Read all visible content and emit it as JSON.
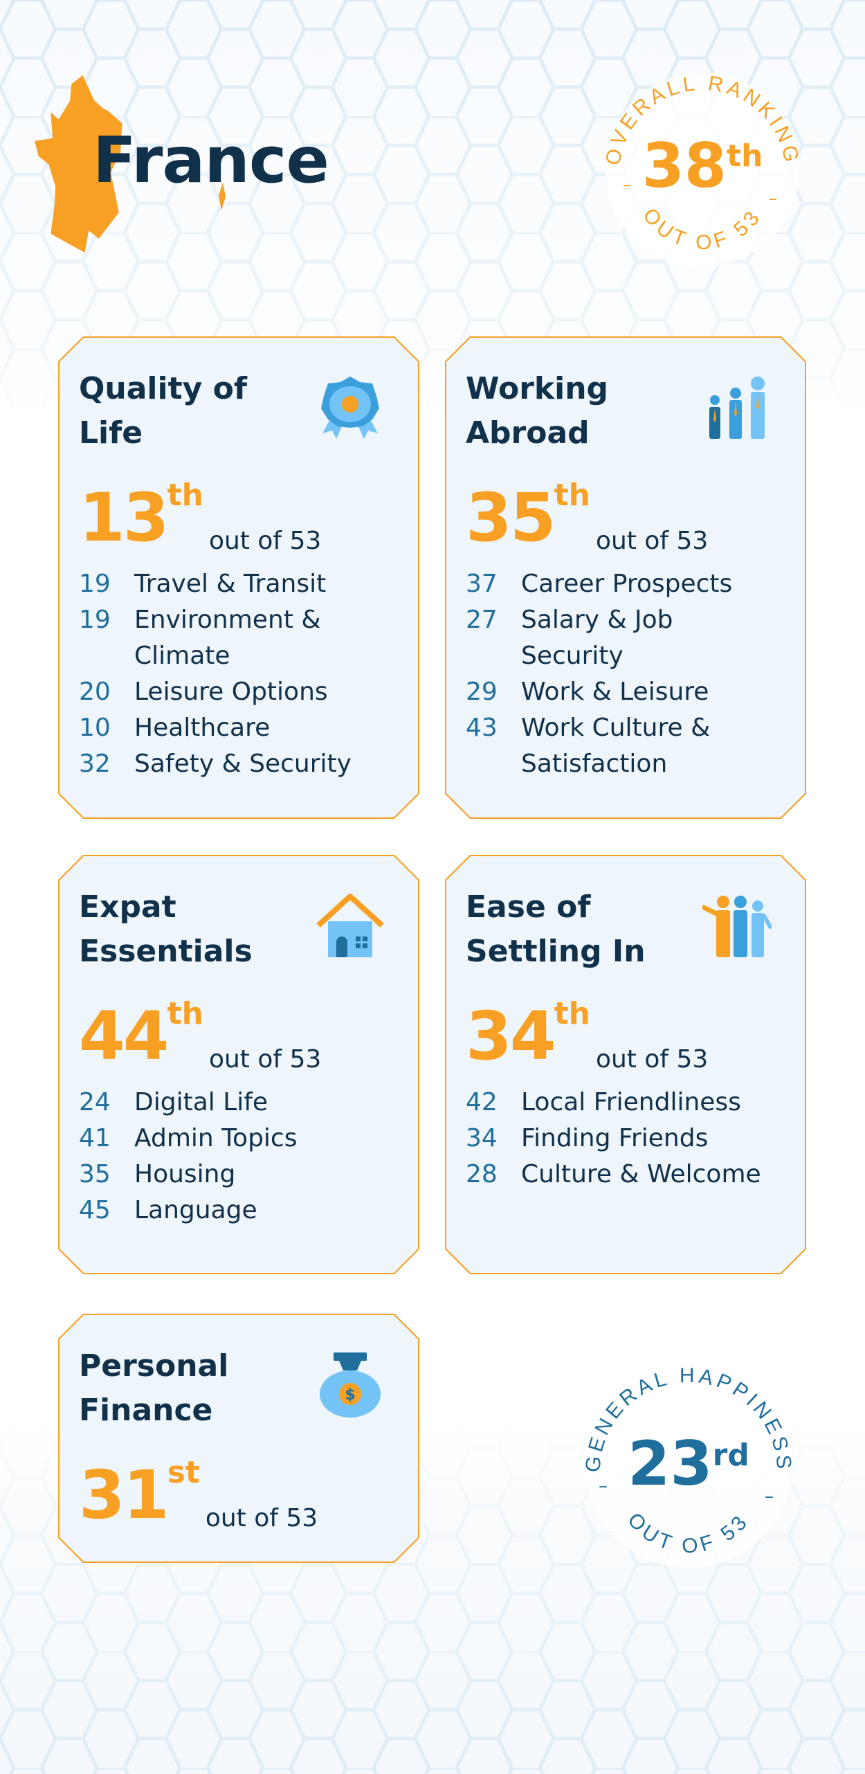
{
  "country": "France",
  "colors": {
    "orange": "#f7a024",
    "navy": "#11304a",
    "blue": "#1f6e9c",
    "card_bg": "#eef5fb"
  },
  "overall": {
    "label": "OVERALL RANKING",
    "rank": "38",
    "suffix": "th",
    "out_of": "OUT OF 53"
  },
  "happiness": {
    "label": "GENERAL HAPPINESS",
    "rank": "23",
    "suffix": "rd",
    "out_of": "OUT OF 53"
  },
  "cards": [
    {
      "title": "Quality of Life",
      "icon": "award-rosette-icon",
      "rank": "13",
      "suffix": "th",
      "out_of": "out of 53",
      "items": [
        {
          "num": "19",
          "label": "Travel & Transit"
        },
        {
          "num": "19",
          "label": "Environment & Climate"
        },
        {
          "num": "20",
          "label": "Leisure Options"
        },
        {
          "num": "10",
          "label": "Healthcare"
        },
        {
          "num": "32",
          "label": "Safety & Security"
        }
      ]
    },
    {
      "title": "Working Abroad",
      "icon": "business-people-icon",
      "rank": "35",
      "suffix": "th",
      "out_of": "out of 53",
      "items": [
        {
          "num": "37",
          "label": "Career Prospects"
        },
        {
          "num": "27",
          "label": "Salary & Job Security"
        },
        {
          "num": "29",
          "label": "Work & Leisure"
        },
        {
          "num": "43",
          "label": "Work Culture & Satisfaction"
        }
      ]
    },
    {
      "title": "Expat Essentials",
      "icon": "house-icon",
      "rank": "44",
      "suffix": "th",
      "out_of": "out of 53",
      "items": [
        {
          "num": "24",
          "label": "Digital Life"
        },
        {
          "num": "41",
          "label": "Admin Topics"
        },
        {
          "num": "35",
          "label": "Housing"
        },
        {
          "num": "45",
          "label": "Language"
        }
      ]
    },
    {
      "title": "Ease of Settling In",
      "icon": "welcoming-people-icon",
      "rank": "34",
      "suffix": "th",
      "out_of": "out of 53",
      "items": [
        {
          "num": "42",
          "label": "Local Friendliness"
        },
        {
          "num": "34",
          "label": "Finding Friends"
        },
        {
          "num": "28",
          "label": "Culture & Welcome"
        }
      ]
    },
    {
      "title": "Personal Finance",
      "icon": "money-bag-icon",
      "rank": "31",
      "suffix": "st",
      "out_of": "out of 53",
      "items": []
    }
  ]
}
